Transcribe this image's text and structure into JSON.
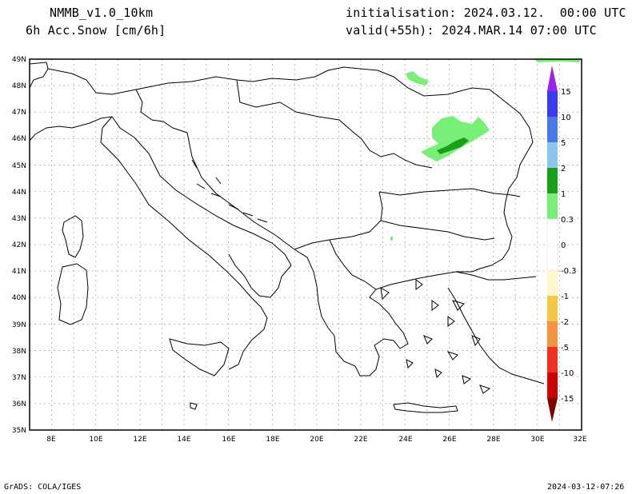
{
  "header": {
    "model": "NMMB_v1.0_10km",
    "variable": "6h Acc.Snow [cm/6h]",
    "initialisation": "initialisation: 2024.03.12.  00:00 UTC",
    "valid": "valid(+55h): 2024.MAR.14 07:00 UTC"
  },
  "axes": {
    "lat_labels": [
      "49N",
      "48N",
      "47N",
      "46N",
      "45N",
      "44N",
      "43N",
      "42N",
      "41N",
      "40N",
      "39N",
      "38N",
      "37N",
      "36N",
      "35N"
    ],
    "lon_labels": [
      "8E",
      "10E",
      "12E",
      "14E",
      "16E",
      "18E",
      "20E",
      "22E",
      "24E",
      "26E",
      "28E",
      "30E",
      "32E"
    ]
  },
  "colorbar": {
    "labels": [
      "15",
      "10",
      "5",
      "2",
      "1",
      "0.3",
      "0",
      "-0.3",
      "-1",
      "-2",
      "-5",
      "-10",
      "-15"
    ],
    "colors": {
      "purple": "#a020f0",
      "c15": "#3a3af0",
      "c10": "#4a78e8",
      "c5": "#8ec4f0",
      "c2": "#18a018",
      "c1": "#78f078",
      "c03": "#ffffff",
      "cm03": "#fff8c8",
      "cm1": "#f4c842",
      "cm2": "#f49440",
      "cm5": "#f03020",
      "cm10": "#d00000",
      "cm15": "#800000"
    }
  },
  "footer": {
    "left": "GrADS: COLA/IGES",
    "right": "2024-03-12-07:26"
  }
}
